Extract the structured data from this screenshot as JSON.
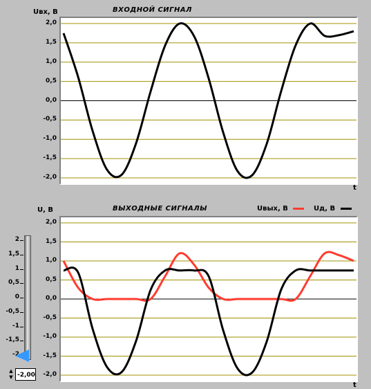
{
  "top_chart": {
    "title": "ВХОДНОЙ СИГНАЛ",
    "ylabel": "Uвх, В",
    "xlabel": "t"
  },
  "bottom_chart": {
    "title": "ВЫХОДНЫЕ СИГНАЛЫ",
    "ylabel": "U, В",
    "xlabel": "t",
    "legend": [
      {
        "name": "Uвых, В",
        "color": "#ff3b30"
      },
      {
        "name": "Uд, В",
        "color": "#000000"
      }
    ]
  },
  "slider": {
    "ticks": [
      "2",
      "1,5",
      "1",
      "0,5",
      "0",
      "-0,5",
      "-1",
      "-1,5",
      "-2"
    ],
    "value_text": "-2,00"
  },
  "chart_data": [
    {
      "type": "line",
      "title": "ВХОДНОЙ СИГНАЛ",
      "ylabel": "Uвх, В",
      "xlabel": "t",
      "ylim": [
        -2.0,
        2.0
      ],
      "yticks": [
        "2,0",
        "1,5",
        "1,0",
        "0,5",
        "0,0",
        "-0,5",
        "-1,0",
        "-1,5",
        "-2,0"
      ],
      "grid": true,
      "series": [
        {
          "color": "#000000",
          "x": [
            0,
            0.05,
            0.1,
            0.15,
            0.2,
            0.25,
            0.3,
            0.35,
            0.4,
            0.45,
            0.5,
            0.55,
            0.6,
            0.65,
            0.7,
            0.75,
            0.8,
            0.85,
            0.9,
            0.95,
            1.0
          ],
          "values": [
            1.75,
            0.62,
            -0.78,
            -1.79,
            -1.92,
            -1.1,
            0.24,
            1.43,
            2.0,
            1.67,
            0.58,
            -0.82,
            -1.83,
            -1.93,
            -1.12,
            0.25,
            1.44,
            2.0,
            1.68,
            1.7,
            1.8
          ]
        }
      ]
    },
    {
      "type": "line",
      "title": "ВЫХОДНЫЕ СИГНАЛЫ",
      "ylabel": "U, В",
      "xlabel": "t",
      "ylim": [
        -2.0,
        2.0
      ],
      "yticks": [
        "2,0",
        "1,5",
        "1,0",
        "0,5",
        "0,0",
        "-0,5",
        "-1,0",
        "-1,5",
        "-2,0"
      ],
      "grid": true,
      "legend": "top-right",
      "series": [
        {
          "name": "Uвых, В",
          "color": "#ff3b30",
          "x": [
            0,
            0.05,
            0.1,
            0.15,
            0.2,
            0.25,
            0.3,
            0.35,
            0.4,
            0.45,
            0.5,
            0.55,
            0.6,
            0.65,
            0.7,
            0.75,
            0.8,
            0.85,
            0.9,
            0.95,
            1.0
          ],
          "values": [
            1.0,
            0.3,
            0.0,
            0.0,
            0.0,
            0.0,
            0.0,
            0.6,
            1.2,
            0.9,
            0.3,
            0.0,
            0.0,
            0.0,
            0.0,
            0.0,
            0.0,
            0.6,
            1.2,
            1.15,
            1.0
          ]
        },
        {
          "name": "Uд, В",
          "color": "#000000",
          "x": [
            0,
            0.05,
            0.1,
            0.15,
            0.2,
            0.25,
            0.3,
            0.35,
            0.4,
            0.45,
            0.5,
            0.55,
            0.6,
            0.65,
            0.7,
            0.75,
            0.8,
            0.85,
            0.9,
            0.95,
            1.0
          ],
          "values": [
            0.75,
            0.7,
            -0.78,
            -1.79,
            -1.92,
            -1.1,
            0.24,
            0.75,
            0.75,
            0.75,
            0.6,
            -0.82,
            -1.83,
            -1.93,
            -1.12,
            0.25,
            0.75,
            0.75,
            0.75,
            0.75,
            0.75
          ]
        }
      ]
    }
  ]
}
